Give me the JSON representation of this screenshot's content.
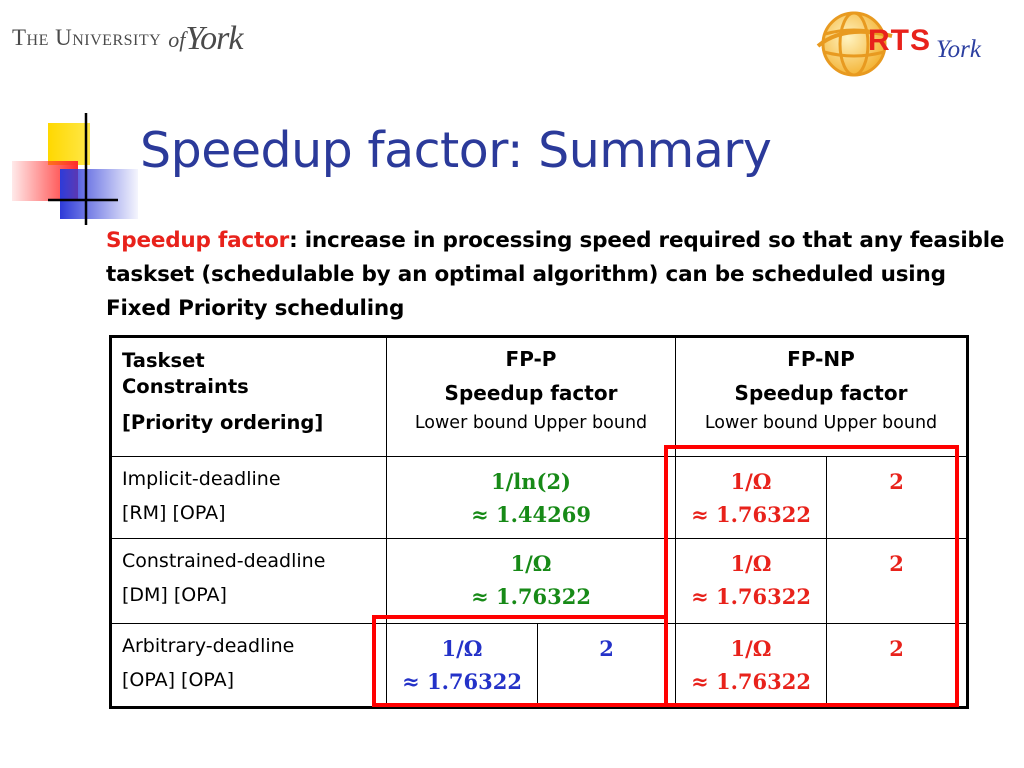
{
  "header": {
    "university_main": "The University",
    "university_of": "of",
    "university_york": "York",
    "rts_text": "RTS",
    "rts_york": "York"
  },
  "slide": {
    "title": "Speedup factor: Summary",
    "definition_term": "Speedup factor",
    "definition_rest": ": increase in processing speed required so that any feasible taskset (schedulable by an optimal algorithm) can be scheduled using Fixed Priority scheduling"
  },
  "table": {
    "header": {
      "col1_line1": "Taskset",
      "col1_line2": "Constraints",
      "col1_line3": "[Priority ordering]",
      "fpp_title": "FP-P",
      "fpp_sub": "Speedup factor",
      "fpp_bounds": "Lower bound Upper bound",
      "fpnp_title": "FP-NP",
      "fpnp_sub": "Speedup factor",
      "fpnp_bounds": "Lower bound Upper bound"
    },
    "rows": [
      {
        "constraint": "Implicit-deadline",
        "ordering": "[RM] [OPA]",
        "fpp_merged_line1": "1/ln(2)",
        "fpp_merged_line2": "≈ 1.44269",
        "fpnp_lower_line1": "1/Ω",
        "fpnp_lower_line2": "≈ 1.76322",
        "fpnp_upper": "2"
      },
      {
        "constraint": "Constrained-deadline",
        "ordering": "[DM] [OPA]",
        "fpp_merged_line1": "1/Ω",
        "fpp_merged_line2": "≈ 1.76322",
        "fpnp_lower_line1": "1/Ω",
        "fpnp_lower_line2": "≈ 1.76322",
        "fpnp_upper": "2"
      },
      {
        "constraint": "Arbitrary-deadline",
        "ordering": "[OPA] [OPA]",
        "fpp_lower_line1": "1/Ω",
        "fpp_lower_line2": "≈ 1.76322",
        "fpp_upper": "2",
        "fpnp_lower_line1": "1/Ω",
        "fpnp_lower_line2": "≈ 1.76322",
        "fpnp_upper": "2"
      }
    ]
  },
  "colors": {
    "title": "#2b3a9a",
    "term": "#e8221b",
    "green": "#178a17",
    "red": "#e8221b",
    "blue": "#2432c8",
    "highlight_box": "#ff0000"
  }
}
